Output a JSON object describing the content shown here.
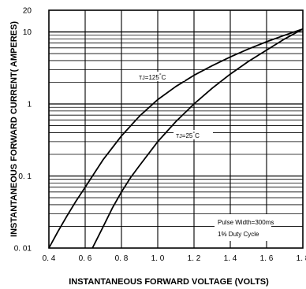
{
  "chart_data": {
    "type": "line",
    "title": "",
    "xlabel": "INSTANTANEOUS FORWARD VOLTAGE (VOLTS)",
    "ylabel": "INSTANTANEOUS FORWARD CURRENT( AMPERES)",
    "xscale": "linear",
    "yscale": "log",
    "xlim": [
      0.4,
      1.8
    ],
    "ylim": [
      0.01,
      20
    ],
    "grid": true,
    "x_ticks": [
      "0. 4",
      "0. 6",
      "0. 8",
      "1. 0",
      "1. 2",
      "1. 4",
      "1. 6",
      "1. 8"
    ],
    "y_ticks": [
      {
        "value": 0.01,
        "label": "0. 01"
      },
      {
        "value": 0.1,
        "label": "0. 1"
      },
      {
        "value": 1,
        "label": "1"
      },
      {
        "value": 10,
        "label": "10"
      },
      {
        "value": 20,
        "label": "20"
      }
    ],
    "series": [
      {
        "name": "TJ=125°C",
        "x": [
          0.4,
          0.45,
          0.5,
          0.55,
          0.6,
          0.7,
          0.8,
          0.9,
          1.0,
          1.1,
          1.2,
          1.3,
          1.4,
          1.5,
          1.6,
          1.7,
          1.8
        ],
        "y": [
          0.01,
          0.017,
          0.028,
          0.045,
          0.07,
          0.17,
          0.36,
          0.68,
          1.15,
          1.75,
          2.5,
          3.4,
          4.5,
          5.8,
          7.3,
          9.0,
          11.0
        ]
      },
      {
        "name": "TJ=25°C",
        "x": [
          0.64,
          0.7,
          0.75,
          0.8,
          0.85,
          0.9,
          1.0,
          1.1,
          1.2,
          1.3,
          1.4,
          1.5,
          1.6,
          1.7,
          1.8
        ],
        "y": [
          0.01,
          0.02,
          0.036,
          0.06,
          0.095,
          0.14,
          0.3,
          0.57,
          1.0,
          1.65,
          2.6,
          3.9,
          5.6,
          8.0,
          11.0
        ]
      }
    ],
    "annotations": {
      "tj125": {
        "prefix": "TJ",
        "text": "=125",
        "sup": "°",
        "suffix": "C"
      },
      "tj25": {
        "prefix": "TJ",
        "text": "=25",
        "sup": "°",
        "suffix": "C"
      },
      "pulse_width": "Pulse Width=300ms",
      "duty_cycle": "1% Duty Cycle"
    }
  }
}
